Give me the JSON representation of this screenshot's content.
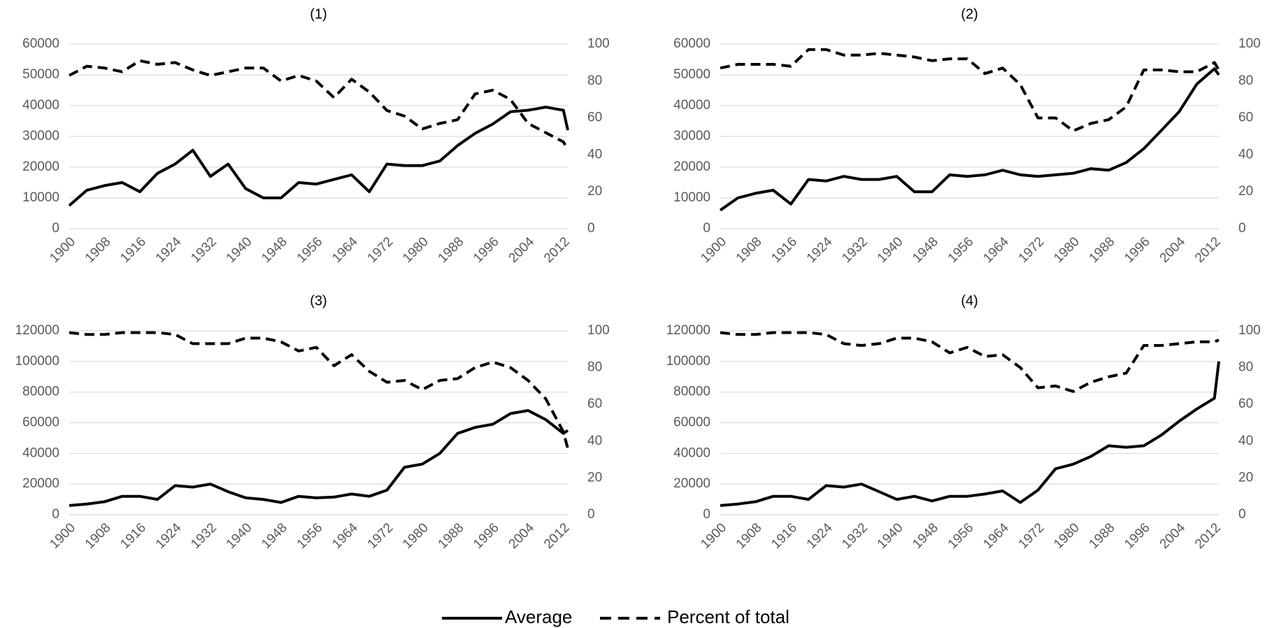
{
  "chart_data": [
    {
      "type": "line",
      "title": "(1)",
      "x": [
        1900,
        1904,
        1908,
        1912,
        1916,
        1920,
        1924,
        1928,
        1932,
        1936,
        1940,
        1944,
        1948,
        1952,
        1956,
        1960,
        1964,
        1968,
        1972,
        1976,
        1980,
        1984,
        1988,
        1992,
        1996,
        2000,
        2004,
        2008,
        2012,
        2013
      ],
      "xlim": [
        1900,
        2013
      ],
      "xticks": [
        1900,
        1908,
        1916,
        1924,
        1932,
        1940,
        1948,
        1956,
        1964,
        1972,
        1980,
        1988,
        1996,
        2004,
        2012
      ],
      "ylim": [
        0,
        60000
      ],
      "yticks": [
        0,
        10000,
        20000,
        30000,
        40000,
        50000,
        60000
      ],
      "y2lim": [
        0,
        100
      ],
      "y2ticks": [
        0,
        20,
        40,
        60,
        80,
        100
      ],
      "grid": true,
      "series": [
        {
          "name": "Average",
          "color": "#000000",
          "line_style": "solid",
          "values": [
            7500,
            12500,
            14000,
            15000,
            12000,
            18000,
            21000,
            25500,
            17000,
            21000,
            13000,
            10000,
            10000,
            15000,
            14500,
            16000,
            17500,
            12000,
            21000,
            20500,
            20500,
            22000,
            27000,
            31000,
            34000,
            38000,
            38500,
            39500,
            38500,
            32000
          ]
        },
        {
          "name": "Percent of total",
          "color": "#000000",
          "line_style": "dashed",
          "axis": "y2",
          "values": [
            83,
            88,
            87,
            85,
            91,
            89,
            90,
            86,
            83,
            85,
            87,
            87,
            80,
            83,
            80,
            71,
            81,
            74,
            64,
            61,
            54,
            57,
            59,
            73,
            75,
            70,
            57,
            52,
            47,
            43
          ]
        }
      ]
    },
    {
      "type": "line",
      "title": "(2)",
      "x": [
        1900,
        1904,
        1908,
        1912,
        1916,
        1920,
        1924,
        1928,
        1932,
        1936,
        1940,
        1944,
        1948,
        1952,
        1956,
        1960,
        1964,
        1968,
        1972,
        1976,
        1980,
        1984,
        1988,
        1992,
        1996,
        2000,
        2004,
        2008,
        2012,
        2013
      ],
      "xlim": [
        1900,
        2013
      ],
      "xticks": [
        1900,
        1908,
        1916,
        1924,
        1932,
        1940,
        1948,
        1956,
        1964,
        1972,
        1980,
        1988,
        1996,
        2004,
        2012
      ],
      "ylim": [
        0,
        60000
      ],
      "yticks": [
        0,
        10000,
        20000,
        30000,
        40000,
        50000,
        60000
      ],
      "y2lim": [
        0,
        100
      ],
      "y2ticks": [
        0,
        20,
        40,
        60,
        80,
        100
      ],
      "grid": true,
      "series": [
        {
          "name": "Average",
          "color": "#000000",
          "line_style": "solid",
          "values": [
            6000,
            10000,
            11500,
            12500,
            8000,
            16000,
            15500,
            17000,
            16000,
            16000,
            17000,
            12000,
            12000,
            17500,
            17000,
            17500,
            19000,
            17500,
            17000,
            17500,
            18000,
            19500,
            19000,
            21500,
            26000,
            32000,
            38000,
            47000,
            52000,
            50000
          ]
        },
        {
          "name": "Percent of total",
          "color": "#000000",
          "line_style": "dashed",
          "axis": "y2",
          "values": [
            87,
            89,
            89,
            89,
            88,
            97,
            97,
            94,
            94,
            95,
            94,
            93,
            91,
            92,
            92,
            84,
            87,
            78,
            60,
            60,
            53,
            57,
            59,
            66,
            86,
            86,
            85,
            85,
            90,
            86
          ]
        }
      ]
    },
    {
      "type": "line",
      "title": "(3)",
      "x": [
        1900,
        1904,
        1908,
        1912,
        1916,
        1920,
        1924,
        1928,
        1932,
        1936,
        1940,
        1944,
        1948,
        1952,
        1956,
        1960,
        1964,
        1968,
        1972,
        1976,
        1980,
        1984,
        1988,
        1992,
        1996,
        2000,
        2004,
        2008,
        2012,
        2013
      ],
      "xlim": [
        1900,
        2013
      ],
      "xticks": [
        1900,
        1908,
        1916,
        1924,
        1932,
        1940,
        1948,
        1956,
        1964,
        1972,
        1980,
        1988,
        1996,
        2004,
        2012
      ],
      "ylim": [
        0,
        120000
      ],
      "yticks": [
        0,
        20000,
        40000,
        60000,
        80000,
        100000,
        120000
      ],
      "y2lim": [
        0,
        100
      ],
      "y2ticks": [
        0,
        20,
        40,
        60,
        80,
        100
      ],
      "grid": true,
      "series": [
        {
          "name": "Average",
          "color": "#000000",
          "line_style": "solid",
          "values": [
            6000,
            7000,
            8500,
            12000,
            12000,
            10000,
            19000,
            18000,
            20000,
            15000,
            11000,
            10000,
            8000,
            12000,
            11000,
            11500,
            13500,
            12000,
            16000,
            31000,
            33000,
            40000,
            53000,
            57000,
            59000,
            66000,
            68000,
            62000,
            53000,
            55000
          ]
        },
        {
          "name": "Percent of total",
          "color": "#000000",
          "line_style": "dashed",
          "axis": "y2",
          "values": [
            99,
            98,
            98,
            99,
            99,
            99,
            98,
            93,
            93,
            93,
            96,
            96,
            94,
            89,
            91,
            81,
            87,
            78,
            72,
            73,
            68,
            73,
            74,
            80,
            83,
            80,
            73,
            63,
            45,
            36
          ]
        }
      ]
    },
    {
      "type": "line",
      "title": "(4)",
      "x": [
        1900,
        1904,
        1908,
        1912,
        1916,
        1920,
        1924,
        1928,
        1932,
        1936,
        1940,
        1944,
        1948,
        1952,
        1956,
        1960,
        1964,
        1968,
        1972,
        1976,
        1980,
        1984,
        1988,
        1992,
        1996,
        2000,
        2004,
        2008,
        2012,
        2013
      ],
      "xlim": [
        1900,
        2013
      ],
      "xticks": [
        1900,
        1908,
        1916,
        1924,
        1932,
        1940,
        1948,
        1956,
        1964,
        1972,
        1980,
        1988,
        1996,
        2004,
        2012
      ],
      "ylim": [
        0,
        120000
      ],
      "yticks": [
        0,
        20000,
        40000,
        60000,
        80000,
        100000,
        120000
      ],
      "y2lim": [
        0,
        100
      ],
      "y2ticks": [
        0,
        20,
        40,
        60,
        80,
        100
      ],
      "grid": true,
      "series": [
        {
          "name": "Average",
          "color": "#000000",
          "line_style": "solid",
          "values": [
            6000,
            7000,
            8500,
            12000,
            12000,
            10000,
            19000,
            18000,
            20000,
            15000,
            10000,
            12000,
            9000,
            12000,
            12000,
            13500,
            15500,
            8000,
            16000,
            30000,
            33000,
            38000,
            45000,
            44000,
            45000,
            52000,
            61000,
            69000,
            76000,
            100000
          ]
        },
        {
          "name": "Percent of total",
          "color": "#000000",
          "line_style": "dashed",
          "axis": "y2",
          "values": [
            99,
            98,
            98,
            99,
            99,
            99,
            98,
            93,
            92,
            93,
            96,
            96,
            94,
            88,
            91,
            86,
            87,
            80,
            69,
            70,
            67,
            72,
            75,
            77,
            92,
            92,
            93,
            94,
            94,
            95
          ]
        }
      ]
    }
  ]
}
